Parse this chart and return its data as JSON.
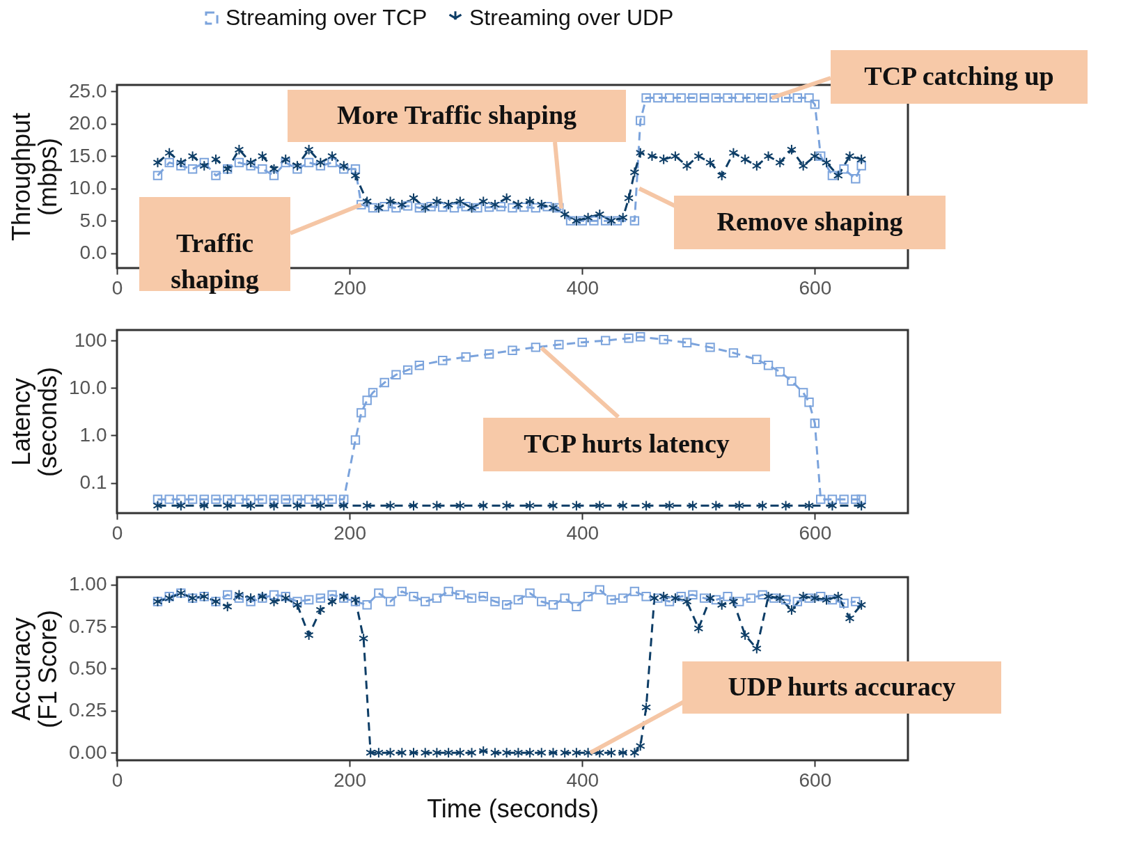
{
  "chart_data": [
    {
      "type": "line",
      "ylabel": "Throughput (mbps)",
      "xlim": [
        0,
        680
      ],
      "xticks": [
        0,
        200,
        400,
        600
      ],
      "ylim": [
        -2.3,
        26
      ],
      "yticks": [
        {
          "value": 0,
          "label": "0.0"
        },
        {
          "value": 5,
          "label": "5.0"
        },
        {
          "value": 10,
          "label": "10.0"
        },
        {
          "value": 15,
          "label": "15.0"
        },
        {
          "value": 20,
          "label": "20.0"
        },
        {
          "value": 25,
          "label": "25.0"
        }
      ],
      "legend": "top",
      "series": [
        {
          "name": "Streaming over TCP",
          "color": "#7ba3dc",
          "marker": "square",
          "line_style": "dashed",
          "x": [
            35,
            45,
            55,
            65,
            75,
            85,
            95,
            105,
            115,
            125,
            135,
            145,
            155,
            165,
            175,
            185,
            195,
            205,
            210,
            220,
            230,
            240,
            250,
            260,
            270,
            280,
            290,
            300,
            310,
            320,
            330,
            340,
            350,
            360,
            370,
            380,
            390,
            400,
            410,
            420,
            430,
            445,
            450,
            455,
            465,
            475,
            485,
            495,
            505,
            515,
            525,
            535,
            545,
            555,
            565,
            575,
            585,
            595,
            600,
            605,
            615,
            625,
            635,
            640
          ],
          "values": [
            12,
            14,
            13.5,
            13,
            14,
            12,
            13,
            14,
            13.5,
            13,
            12,
            14,
            13,
            14,
            13.5,
            14,
            13,
            13,
            7.5,
            7,
            7.2,
            7,
            7.3,
            7,
            7.2,
            7.1,
            7,
            7.2,
            7,
            7.1,
            7.2,
            7,
            7.1,
            7,
            7.2,
            7,
            5,
            5,
            5,
            5,
            5,
            5,
            20.5,
            24,
            24,
            24,
            24,
            24,
            24,
            24,
            24,
            24,
            24,
            24,
            24,
            24,
            24,
            24,
            23,
            15,
            12,
            13,
            11.5,
            13.5
          ]
        },
        {
          "name": "Streaming over UDP",
          "color": "#0d3d66",
          "marker": "cross",
          "line_style": "dashed",
          "x": [
            35,
            45,
            55,
            65,
            75,
            85,
            95,
            105,
            115,
            125,
            135,
            145,
            155,
            165,
            175,
            185,
            195,
            205,
            215,
            225,
            235,
            245,
            255,
            265,
            275,
            285,
            295,
            305,
            315,
            325,
            335,
            345,
            355,
            365,
            375,
            385,
            395,
            405,
            415,
            425,
            435,
            440,
            445,
            450,
            460,
            470,
            480,
            490,
            500,
            510,
            520,
            530,
            540,
            550,
            560,
            570,
            580,
            590,
            600,
            610,
            620,
            630,
            640
          ],
          "values": [
            14,
            15.5,
            14,
            15,
            13.5,
            14.5,
            13,
            16,
            14,
            15,
            13,
            14.5,
            13.5,
            16,
            14,
            15,
            13.5,
            12,
            8,
            7,
            8,
            7.5,
            8.5,
            7,
            8,
            7.5,
            8,
            7,
            8,
            7.5,
            8.5,
            7.5,
            8,
            7.5,
            7,
            6,
            5,
            5.5,
            6,
            5,
            5.5,
            8.5,
            12.5,
            15.5,
            15,
            14.5,
            15,
            13.5,
            15,
            14,
            12,
            15.5,
            14.5,
            13.5,
            15,
            14,
            16,
            13.5,
            15,
            14,
            12,
            15,
            14.5
          ]
        }
      ],
      "annotations": [
        {
          "text": "Traffic shaping",
          "x": 210,
          "y": 7.5
        },
        {
          "text": "More Traffic shaping",
          "x": 382,
          "y": 6.9
        },
        {
          "text": "Remove shaping",
          "x": 449,
          "y": 10
        },
        {
          "text": "TCP catching up",
          "x": 563,
          "y": 24
        }
      ]
    },
    {
      "type": "line",
      "ylabel": "Latency (seconds)",
      "log": true,
      "xlim": [
        0,
        680
      ],
      "xticks": [
        0,
        200,
        400,
        600
      ],
      "ylim": [
        0.023,
        167
      ],
      "yticks": [
        {
          "value": 0.1,
          "label": "0.1"
        },
        {
          "value": 1,
          "label": "1.0"
        },
        {
          "value": 10,
          "label": "10.0"
        },
        100
      ],
      "series": [
        {
          "color": "#7ba3dc",
          "marker": "square",
          "line_style": "dashed",
          "x": [
            35,
            45,
            55,
            65,
            75,
            85,
            95,
            105,
            115,
            125,
            135,
            145,
            155,
            165,
            175,
            185,
            195,
            205,
            210,
            215,
            220,
            230,
            240,
            250,
            260,
            280,
            300,
            320,
            340,
            360,
            380,
            400,
            420,
            440,
            450,
            470,
            490,
            510,
            530,
            550,
            560,
            570,
            580,
            590,
            595,
            600,
            605,
            615,
            625,
            635,
            640
          ],
          "values": [
            0.045,
            0.045,
            0.045,
            0.045,
            0.045,
            0.045,
            0.045,
            0.045,
            0.045,
            0.045,
            0.045,
            0.045,
            0.045,
            0.045,
            0.045,
            0.045,
            0.045,
            0.8,
            3,
            5.5,
            8,
            13,
            19,
            24,
            30,
            38,
            45,
            52,
            62,
            72,
            82,
            92,
            100,
            112,
            120,
            105,
            90,
            72,
            55,
            40,
            30,
            22,
            14,
            8,
            5,
            1.8,
            0.045,
            0.045,
            0.045,
            0.045,
            0.045
          ]
        },
        {
          "color": "#0d3d66",
          "marker": "cross",
          "line_style": "dashed",
          "x": [
            35,
            55,
            75,
            95,
            115,
            135,
            155,
            175,
            195,
            215,
            235,
            255,
            275,
            295,
            315,
            335,
            355,
            375,
            395,
            415,
            435,
            455,
            475,
            495,
            515,
            535,
            555,
            575,
            595,
            615,
            640
          ],
          "values": [
            0.033,
            0.033,
            0.033,
            0.033,
            0.033,
            0.033,
            0.033,
            0.033,
            0.033,
            0.033,
            0.033,
            0.033,
            0.033,
            0.033,
            0.033,
            0.033,
            0.033,
            0.033,
            0.033,
            0.033,
            0.033,
            0.033,
            0.033,
            0.033,
            0.033,
            0.033,
            0.033,
            0.033,
            0.033,
            0.033,
            0.033
          ]
        }
      ],
      "annotations": [
        {
          "text": "TCP hurts latency",
          "x": 365,
          "y": 70
        }
      ]
    },
    {
      "type": "line",
      "ylabel": "Accuracy (F1 Score)",
      "xlabel": "Time (seconds)",
      "xlim": [
        0,
        680
      ],
      "xticks": [
        0,
        200,
        400,
        600
      ],
      "ylim": [
        -0.045,
        1.045
      ],
      "yticks": [
        {
          "value": 0,
          "label": "0.00"
        },
        {
          "value": 0.25,
          "label": "0.25"
        },
        {
          "value": 0.5,
          "label": "0.50"
        },
        {
          "value": 0.75,
          "label": "0.75"
        },
        {
          "value": 1,
          "label": "1.00"
        }
      ],
      "series": [
        {
          "color": "#7ba3dc",
          "marker": "square",
          "line_style": "dashed",
          "x": [
            35,
            45,
            55,
            65,
            75,
            85,
            95,
            105,
            115,
            125,
            135,
            145,
            155,
            165,
            175,
            185,
            195,
            205,
            215,
            225,
            235,
            245,
            255,
            265,
            275,
            285,
            295,
            305,
            315,
            325,
            335,
            345,
            355,
            365,
            375,
            385,
            395,
            405,
            415,
            425,
            435,
            445,
            455,
            465,
            475,
            485,
            495,
            505,
            515,
            525,
            535,
            545,
            555,
            565,
            575,
            585,
            595,
            605,
            615,
            625,
            635
          ],
          "values": [
            0.9,
            0.93,
            0.95,
            0.92,
            0.93,
            0.9,
            0.94,
            0.92,
            0.9,
            0.92,
            0.94,
            0.93,
            0.9,
            0.91,
            0.92,
            0.94,
            0.92,
            0.9,
            0.88,
            0.95,
            0.9,
            0.96,
            0.93,
            0.9,
            0.92,
            0.96,
            0.94,
            0.92,
            0.93,
            0.9,
            0.88,
            0.91,
            0.95,
            0.9,
            0.88,
            0.92,
            0.87,
            0.93,
            0.97,
            0.91,
            0.92,
            0.96,
            0.93,
            0.92,
            0.9,
            0.93,
            0.94,
            0.92,
            0.91,
            0.93,
            0.9,
            0.92,
            0.94,
            0.92,
            0.91,
            0.9,
            0.92,
            0.93,
            0.91,
            0.89,
            0.9
          ]
        },
        {
          "color": "#0d3d66",
          "marker": "cross",
          "line_style": "dashed",
          "x": [
            35,
            45,
            55,
            65,
            75,
            85,
            95,
            105,
            115,
            125,
            135,
            145,
            155,
            165,
            175,
            185,
            195,
            205,
            212,
            218,
            225,
            235,
            245,
            255,
            265,
            275,
            285,
            295,
            305,
            315,
            325,
            335,
            345,
            355,
            365,
            375,
            385,
            395,
            405,
            415,
            425,
            435,
            445,
            450,
            455,
            462,
            470,
            480,
            490,
            500,
            510,
            520,
            530,
            540,
            550,
            560,
            570,
            580,
            590,
            600,
            610,
            620,
            630,
            640
          ],
          "values": [
            0.9,
            0.92,
            0.95,
            0.92,
            0.93,
            0.9,
            0.87,
            0.94,
            0.92,
            0.93,
            0.9,
            0.92,
            0.88,
            0.7,
            0.85,
            0.9,
            0.93,
            0.91,
            0.68,
            0,
            0,
            0,
            0,
            0,
            0,
            0,
            0,
            0,
            0,
            0.01,
            0,
            0,
            0,
            0,
            0,
            0,
            0,
            0,
            0,
            0,
            0,
            0,
            0,
            0.04,
            0.27,
            0.92,
            0.93,
            0.92,
            0.9,
            0.74,
            0.92,
            0.88,
            0.9,
            0.7,
            0.62,
            0.93,
            0.92,
            0.85,
            0.93,
            0.92,
            0.91,
            0.93,
            0.8,
            0.88
          ]
        }
      ],
      "annotations": [
        {
          "text": "UDP hurts accuracy",
          "x": 407,
          "y": 0
        }
      ]
    }
  ]
}
